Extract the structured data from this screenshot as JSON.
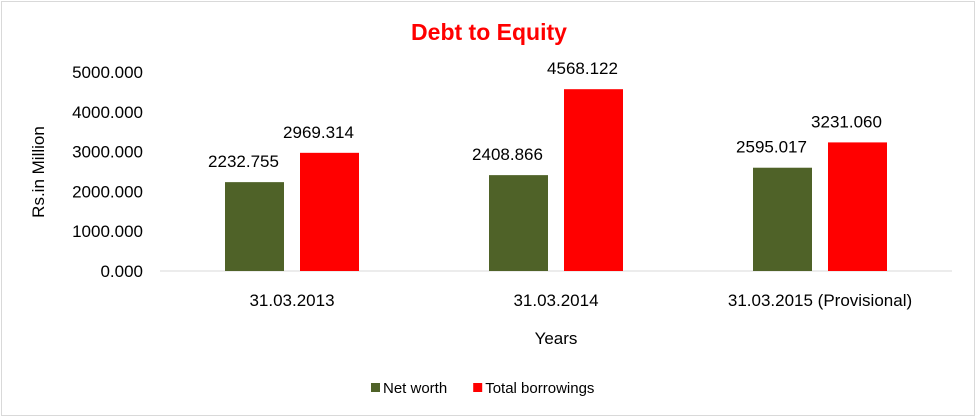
{
  "chart_data": {
    "type": "bar",
    "title": "Debt to Equity",
    "xlabel": "Years",
    "ylabel": "Rs.in Million",
    "categories": [
      "31.03.2013",
      "31.03.2014",
      "31.03.2015 (Provisional)"
    ],
    "series": [
      {
        "name": "Net worth",
        "color": "#4f6228",
        "values": [
          2232.755,
          2408.866,
          2595.017
        ],
        "labels": [
          "2232.755",
          "2408.866",
          "2595.017"
        ]
      },
      {
        "name": "Total borrowings",
        "color": "#ff0000",
        "values": [
          2969.314,
          4568.122,
          3231.06
        ],
        "labels": [
          "2969.314",
          "4568.122",
          "3231.060"
        ]
      }
    ],
    "ylim": [
      0,
      5000
    ],
    "yticks": [
      "0.000",
      "1000.000",
      "2000.000",
      "3000.000",
      "4000.000",
      "5000.000"
    ],
    "grid": false,
    "legend": "bottom"
  }
}
